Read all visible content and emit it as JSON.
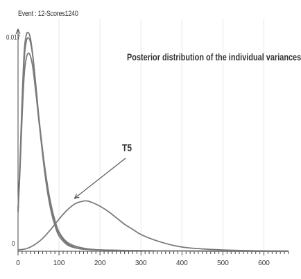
{
  "header": {
    "event": "Event : 12-Scores1240"
  },
  "chart_data": {
    "type": "line",
    "title": "Posterior distribution of the individual variances",
    "xlabel": "",
    "ylabel": "",
    "xlim": [
      0,
      660
    ],
    "ylim": [
      0,
      0.017
    ],
    "x_ticks": [
      "0",
      "100",
      "200",
      "300",
      "400",
      "500",
      "600"
    ],
    "y_ticks": [
      "0",
      "0.017"
    ],
    "grid": true,
    "annotation": {
      "text": "T5",
      "points_to": [
        165,
        0.0039
      ]
    },
    "series": [
      {
        "x": [
          0,
          5,
          10,
          15,
          20,
          25,
          30,
          35,
          40,
          45,
          50,
          60,
          70,
          80,
          90,
          100,
          120,
          150,
          200,
          300,
          400,
          660
        ],
        "y": [
          0.0033,
          0.0072,
          0.0118,
          0.0155,
          0.0168,
          0.017,
          0.0166,
          0.0155,
          0.014,
          0.0123,
          0.0105,
          0.0075,
          0.005,
          0.0032,
          0.002,
          0.0012,
          0.0005,
          0.0002,
          0.0001,
          5e-05,
          2e-05,
          0
        ]
      },
      {
        "x": [
          0,
          5,
          10,
          15,
          20,
          25,
          30,
          35,
          40,
          45,
          50,
          60,
          70,
          80,
          90,
          100,
          120,
          150,
          200,
          300,
          400,
          660
        ],
        "y": [
          0.0031,
          0.0069,
          0.0113,
          0.0149,
          0.0163,
          0.0166,
          0.0163,
          0.0154,
          0.014,
          0.0124,
          0.0107,
          0.0078,
          0.0053,
          0.0035,
          0.0022,
          0.0014,
          0.0006,
          0.0002,
          0.0001,
          5e-05,
          2e-05,
          0
        ]
      },
      {
        "x": [
          0,
          5,
          10,
          15,
          20,
          25,
          30,
          35,
          40,
          45,
          50,
          60,
          70,
          80,
          90,
          100,
          120,
          150,
          200,
          300,
          400,
          660
        ],
        "y": [
          0.003,
          0.0065,
          0.0105,
          0.0137,
          0.015,
          0.0154,
          0.0152,
          0.0145,
          0.0133,
          0.0119,
          0.0104,
          0.0078,
          0.0055,
          0.0037,
          0.0024,
          0.0015,
          0.0007,
          0.0003,
          0.0001,
          5e-05,
          2e-05,
          0
        ]
      },
      {
        "x": [
          0,
          20,
          40,
          60,
          80,
          100,
          120,
          140,
          160,
          170,
          180,
          200,
          220,
          240,
          260,
          280,
          300,
          340,
          380,
          420,
          500,
          580,
          660
        ],
        "y": [
          0.0001,
          0.0002,
          0.0005,
          0.001,
          0.0017,
          0.0025,
          0.0032,
          0.0037,
          0.0039,
          0.0039,
          0.0038,
          0.0035,
          0.0031,
          0.0026,
          0.0021,
          0.0017,
          0.0013,
          0.0008,
          0.00045,
          0.00025,
          0.0001,
          4e-05,
          2e-05
        ]
      }
    ]
  },
  "style": {
    "line_color": "#7a7a7a",
    "grid_color": "#e6e6e6",
    "axis_color": "#444444"
  }
}
